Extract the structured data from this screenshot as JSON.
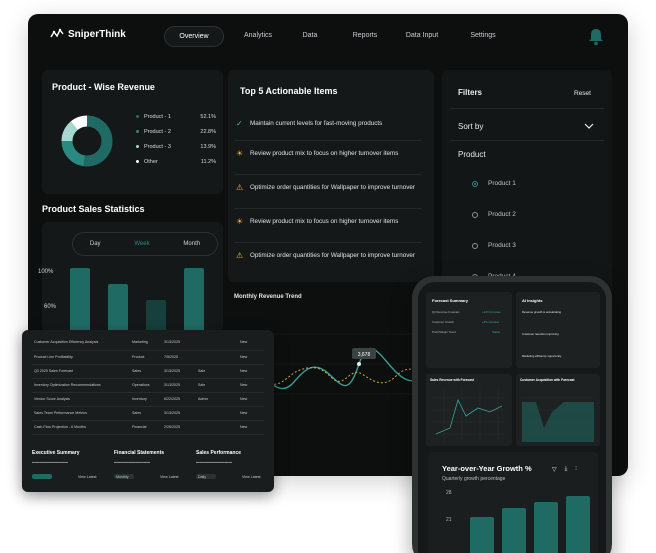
{
  "brand": {
    "name": "SniperThink"
  },
  "nav": {
    "items": [
      {
        "label": "Overview",
        "active": true
      },
      {
        "label": "Analytics"
      },
      {
        "label": "Data"
      },
      {
        "label": "Reports"
      },
      {
        "label": "Data Input"
      },
      {
        "label": "Settings"
      }
    ]
  },
  "product_revenue": {
    "title": "Product - Wise Revenue",
    "items": [
      {
        "label": "Product - 1",
        "value": "52.1%",
        "color": "#1f6b64"
      },
      {
        "label": "Product - 2",
        "value": "22.8%",
        "color": "#2a8a81"
      },
      {
        "label": "Product - 3",
        "value": "13.9%",
        "color": "#a8d8d2"
      },
      {
        "label": "Other",
        "value": "11.2%",
        "color": "#ffffff"
      }
    ]
  },
  "sales_stats": {
    "title": "Product Sales Statistics",
    "tabs": [
      {
        "label": "Day"
      },
      {
        "label": "Week",
        "active": true
      },
      {
        "label": "Month"
      }
    ],
    "y_labels": [
      "100%",
      "60%"
    ]
  },
  "actions": {
    "title": "Top 5 Actionable Items",
    "items": [
      {
        "icon": "check",
        "text": "Maintain current levels for fast-moving products"
      },
      {
        "icon": "bulb",
        "text": "Review product mix to focus on higher turnover items"
      },
      {
        "icon": "warn",
        "text": "Optimize order quantities for Wallpaper to improve turnover"
      },
      {
        "icon": "bulb",
        "text": "Review product mix to focus on higher turnover items"
      },
      {
        "icon": "warn",
        "text": "Optimize order quantities for Wallpaper to improve turnover"
      }
    ]
  },
  "trend": {
    "title": "Monthly Revenue Trend",
    "tooltip": "3,678"
  },
  "filters": {
    "title": "Filters",
    "reset": "Reset",
    "sort_by": "Sort by",
    "product_label": "Product",
    "options": [
      {
        "label": "Product 1",
        "selected": true
      },
      {
        "label": "Product 2"
      },
      {
        "label": "Product 3"
      },
      {
        "label": "Product 4"
      }
    ]
  },
  "reports_overlay": {
    "rows": [
      {
        "name": "Customer Acquisition Efficiency Analysis",
        "dept": "Marketing",
        "date": "3/13/2025",
        "status": "New"
      },
      {
        "name": "Product Line Profitability",
        "dept": "Product",
        "date": "7/5/2025",
        "status": "New"
      },
      {
        "name": "Q3 2025 Sales Forecast",
        "dept": "Sales",
        "date": "3/13/2025",
        "owner": "Sale",
        "status": "New"
      },
      {
        "name": "Inventory Optimization Recommendations",
        "dept": "Operations",
        "date": "3/13/2025",
        "owner": "Sale",
        "status": "New"
      },
      {
        "name": "Vendor Score Analysis",
        "dept": "Inventory",
        "date": "6/22/2025",
        "owner": "Admin",
        "status": "New"
      },
      {
        "name": "Sales Team Performance Metrics",
        "dept": "Sales",
        "date": "3/13/2025",
        "status": "New"
      },
      {
        "name": "Cash Flow Projection - 6 Months",
        "dept": "Financial",
        "date": "2/26/2025",
        "status": "New"
      }
    ],
    "summaries": [
      {
        "title": "Executive Summary",
        "chip": "",
        "link": "View Latest"
      },
      {
        "title": "Financial Statements",
        "chip": "Monthly",
        "link": "View Latest"
      },
      {
        "title": "Sales Performance",
        "chip": "Daily",
        "link": "View Latest"
      }
    ]
  },
  "phone": {
    "forecast_summary": {
      "title": "Forecast Summary",
      "rows": [
        {
          "label": "Q3 Revenue Forecast",
          "value": "+12% increase"
        },
        {
          "label": "Customer Growth",
          "value": "+8% increase"
        },
        {
          "label": "Profit Margin Trend",
          "value": "Stable"
        }
      ]
    },
    "ai_insights": {
      "title": "AI Insights",
      "items": [
        "Revenue growth is accelerating",
        "Customer retention improving",
        "Marketing efficiency opportunity"
      ]
    },
    "panel_sales_forecast": {
      "title": "Sales Revenue with Forecast"
    },
    "panel_customer_acq": {
      "title": "Customer Acquisition with Forecast"
    },
    "yoy": {
      "title": "Year-over-Year Growth %",
      "subtitle": "Quarterly growth percentage",
      "y_labels": [
        "28",
        "21"
      ]
    }
  }
}
